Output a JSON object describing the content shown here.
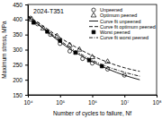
{
  "chart_data": {
    "type": "scatter",
    "title": "2024-T351",
    "x_label": "Number of cycles to failure, Nf",
    "y_label": "Maximum stress, MPa",
    "log": "x",
    "grid": false,
    "legend": "top-right",
    "xlim": [
      10000,
      100000000
    ],
    "xticks": [
      {
        "value": 10000,
        "label": "10⁴"
      },
      {
        "value": 100000,
        "label": "10⁵"
      },
      {
        "value": 1000000,
        "label": "10⁶"
      },
      {
        "value": 10000000,
        "label": "10⁷"
      },
      {
        "value": 100000000,
        "label": "10⁸"
      }
    ],
    "ylim": [
      150,
      450
    ],
    "yticks": [
      150,
      200,
      250,
      300,
      350,
      400,
      450
    ],
    "series": [
      {
        "name": "Unpeened",
        "type": "scatter",
        "marker": "circle-open",
        "color": "#000000",
        "x": [
          12000,
          20000,
          50000,
          100000,
          200000,
          500000,
          1000000,
          3000000,
          10000000
        ],
        "values": [
          405,
          385,
          350,
          320,
          295,
          270,
          255,
          235,
          215
        ]
      },
      {
        "name": "Optimum peened",
        "type": "scatter",
        "marker": "triangle-open",
        "color": "#000000",
        "x": [
          13000,
          30000,
          80000,
          200000,
          400000,
          1000000,
          3000000
        ],
        "values": [
          400,
          370,
          345,
          315,
          300,
          275,
          260
        ]
      },
      {
        "name": "Curve fit unpeened",
        "type": "line",
        "line_style": "solid",
        "color": "#000000",
        "x": [
          10000,
          30000,
          100000,
          1000000,
          10000000,
          30000000
        ],
        "values": [
          410,
          370,
          325,
          260,
          215,
          200
        ]
      },
      {
        "name": "Curve fit optimum peened",
        "type": "line",
        "line_style": "dashed",
        "color": "#000000",
        "x": [
          10000,
          30000,
          100000,
          1000000,
          10000000,
          30000000
        ],
        "values": [
          412,
          378,
          340,
          280,
          240,
          228
        ]
      },
      {
        "name": "Worst peened",
        "type": "scatter",
        "marker": "square",
        "color": "#000000",
        "x": [
          15000,
          40000,
          100000,
          300000,
          800000,
          2000000
        ],
        "values": [
          390,
          360,
          330,
          290,
          265,
          245
        ]
      },
      {
        "name": "Curve fit worst peened",
        "type": "line",
        "line_style": "dashdot",
        "color": "#000000",
        "x": [
          10000,
          30000,
          100000,
          1000000,
          10000000,
          30000000
        ],
        "values": [
          408,
          372,
          330,
          265,
          225,
          212
        ]
      }
    ]
  }
}
